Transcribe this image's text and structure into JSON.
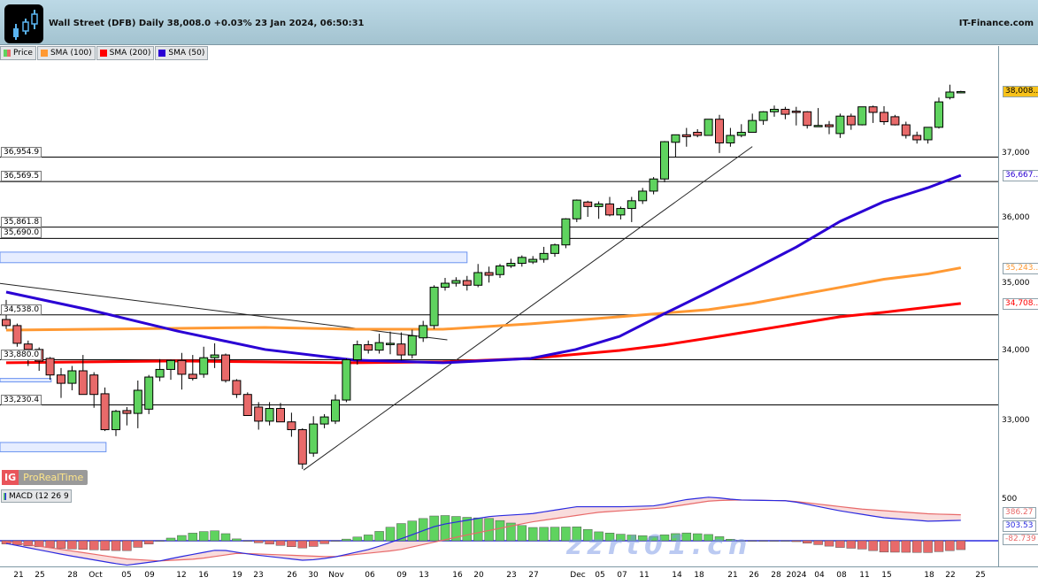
{
  "header": {
    "title": "Wall Street (DFB) Daily 38,008.0 +0.03% 23 Jan 2024, 06:50:31",
    "brand": "IT-Finance.com"
  },
  "legend": [
    {
      "label": "Price",
      "color": "#5fd35f"
    },
    {
      "label": "SMA (100)",
      "color": "#ff9933"
    },
    {
      "label": "SMA (200)",
      "color": "#ff0000"
    },
    {
      "label": "SMA (50)",
      "color": "#2a00d4"
    }
  ],
  "branding": {
    "ig": "IG",
    "name": "ProRealTime"
  },
  "watermark": "zzrt01.cn",
  "chart_data": [
    {
      "type": "candlestick",
      "title": "Wall Street (DFB) Daily",
      "y_scale": "log",
      "ylim": [
        32250,
        38600
      ],
      "y_ticks": [
        "38,000",
        "37,000",
        "36,000",
        "35,000",
        "34,000",
        "33,000"
      ],
      "y_tick_values": [
        38000,
        37000,
        36000,
        35000,
        34000,
        33000
      ],
      "up_color": "#5fd35f",
      "down_color": "#e86a6a",
      "x_tick_labels": [
        "21",
        "25",
        "28",
        "Oct",
        "05",
        "09",
        "12",
        "16",
        "19",
        "23",
        "26",
        "30",
        "Nov",
        "06",
        "09",
        "13",
        "16",
        "20",
        "23",
        "27",
        "Dec",
        "05",
        "07",
        "11",
        "14",
        "18",
        "21",
        "26",
        "28",
        "2024",
        "04",
        "08",
        "11",
        "15",
        "18",
        "22",
        "25"
      ],
      "ohlc": [
        [
          34470,
          34760,
          34330,
          34380
        ],
        [
          34380,
          34410,
          34070,
          34120
        ],
        [
          34110,
          34160,
          33790,
          34030
        ],
        [
          34030,
          34060,
          33720,
          33860
        ],
        [
          33900,
          33920,
          33590,
          33660
        ],
        [
          33660,
          33760,
          33330,
          33540
        ],
        [
          33540,
          33790,
          33440,
          33720
        ],
        [
          33720,
          33950,
          33380,
          33380
        ],
        [
          33660,
          33700,
          33190,
          33380
        ],
        [
          33390,
          33480,
          32860,
          32880
        ],
        [
          32880,
          33160,
          32790,
          33140
        ],
        [
          33150,
          33200,
          32940,
          33110
        ],
        [
          33110,
          33580,
          32900,
          33440
        ],
        [
          33170,
          33660,
          33100,
          33630
        ],
        [
          33630,
          33890,
          33570,
          33740
        ],
        [
          33740,
          33880,
          33590,
          33870
        ],
        [
          33870,
          33980,
          33450,
          33670
        ],
        [
          33670,
          33950,
          33580,
          33610
        ],
        [
          33670,
          34070,
          33620,
          33910
        ],
        [
          33910,
          34120,
          33760,
          33950
        ],
        [
          33950,
          33970,
          33550,
          33580
        ],
        [
          33580,
          33600,
          33330,
          33380
        ],
        [
          33380,
          33410,
          33080,
          33080
        ],
        [
          33200,
          33270,
          32880,
          33000
        ],
        [
          33000,
          33270,
          32940,
          33180
        ],
        [
          33180,
          33260,
          32990,
          32990
        ],
        [
          32990,
          33120,
          32780,
          32880
        ],
        [
          32880,
          32900,
          32330,
          32400
        ],
        [
          32550,
          33070,
          32500,
          32960
        ],
        [
          32960,
          33100,
          32900,
          33060
        ],
        [
          33000,
          33380,
          32960,
          33300
        ],
        [
          33300,
          33900,
          33270,
          33880
        ],
        [
          33880,
          34160,
          33810,
          34100
        ],
        [
          34100,
          34160,
          33970,
          34020
        ],
        [
          34020,
          34260,
          33970,
          34130
        ],
        [
          34120,
          34290,
          33960,
          34120
        ],
        [
          34110,
          34280,
          33870,
          33950
        ],
        [
          33950,
          34320,
          33900,
          34230
        ],
        [
          34200,
          34450,
          34140,
          34380
        ],
        [
          34380,
          34980,
          34330,
          34950
        ],
        [
          34950,
          35090,
          34900,
          35010
        ],
        [
          35010,
          35100,
          34960,
          35050
        ],
        [
          35050,
          35120,
          34900,
          34980
        ],
        [
          34980,
          35300,
          34950,
          35170
        ],
        [
          35170,
          35260,
          35020,
          35130
        ],
        [
          35140,
          35300,
          35090,
          35270
        ],
        [
          35270,
          35380,
          35240,
          35310
        ],
        [
          35310,
          35430,
          35260,
          35400
        ],
        [
          35330,
          35420,
          35300,
          35370
        ],
        [
          35370,
          35560,
          35320,
          35460
        ],
        [
          35460,
          35610,
          35410,
          35590
        ],
        [
          35590,
          36000,
          35540,
          35990
        ],
        [
          35990,
          36290,
          35940,
          36280
        ],
        [
          36250,
          36270,
          36020,
          36180
        ],
        [
          36180,
          36260,
          35990,
          36220
        ],
        [
          36220,
          36330,
          36030,
          36050
        ],
        [
          36050,
          36180,
          35980,
          36150
        ],
        [
          36150,
          36330,
          35940,
          36270
        ],
        [
          36270,
          36470,
          36220,
          36420
        ],
        [
          36420,
          36640,
          36370,
          36610
        ],
        [
          36610,
          37210,
          36560,
          37200
        ],
        [
          37190,
          37310,
          36960,
          37310
        ],
        [
          37310,
          37420,
          37120,
          37280
        ],
        [
          37350,
          37400,
          37270,
          37300
        ],
        [
          37300,
          37560,
          37300,
          37560
        ],
        [
          37560,
          37630,
          37020,
          37180
        ],
        [
          37180,
          37420,
          37120,
          37300
        ],
        [
          37300,
          37480,
          37270,
          37350
        ],
        [
          37350,
          37650,
          37350,
          37540
        ],
        [
          37540,
          37690,
          37470,
          37680
        ],
        [
          37680,
          37780,
          37600,
          37720
        ],
        [
          37720,
          37760,
          37560,
          37640
        ],
        [
          37690,
          37760,
          37460,
          37680
        ],
        [
          37680,
          37690,
          37410,
          37460
        ],
        [
          37460,
          37740,
          37440,
          37460
        ],
        [
          37470,
          37530,
          37320,
          37440
        ],
        [
          37330,
          37650,
          37260,
          37610
        ],
        [
          37610,
          37650,
          37390,
          37470
        ],
        [
          37470,
          37760,
          37460,
          37760
        ],
        [
          37760,
          37780,
          37500,
          37670
        ],
        [
          37670,
          37770,
          37470,
          37520
        ],
        [
          37600,
          37630,
          37460,
          37470
        ],
        [
          37470,
          37520,
          37250,
          37300
        ],
        [
          37300,
          37360,
          37170,
          37230
        ],
        [
          37230,
          37430,
          37170,
          37430
        ],
        [
          37430,
          37910,
          37410,
          37840
        ],
        [
          37910,
          38120,
          37880,
          38000
        ],
        [
          38000,
          38020,
          37980,
          38008
        ]
      ],
      "sma": [
        {
          "name": "SMA (50)",
          "color": "#2a00d4",
          "last_label": "36,667..",
          "points": [
            [
              0,
              34878
            ],
            [
              7.5,
              34616
            ],
            [
              15.6,
              34300
            ],
            [
              23.6,
              34029
            ],
            [
              31.7,
              33875
            ],
            [
              39.8,
              33836
            ],
            [
              47.8,
              33900
            ],
            [
              51.9,
              34029
            ],
            [
              55.9,
              34222
            ],
            [
              59.9,
              34550
            ],
            [
              64,
              34878
            ],
            [
              68,
              35211
            ],
            [
              72,
              35557
            ],
            [
              76,
              35951
            ],
            [
              80,
              36257
            ],
            [
              84,
              36473
            ],
            [
              87,
              36667
            ]
          ]
        },
        {
          "name": "SMA (100)",
          "color": "#ff9933",
          "last_label": "35,243..",
          "points": [
            [
              0,
              34313
            ],
            [
              15.6,
              34340
            ],
            [
              23.6,
              34353
            ],
            [
              31.7,
              34326
            ],
            [
              39.8,
              34326
            ],
            [
              47.8,
              34406
            ],
            [
              55.9,
              34511
            ],
            [
              59.9,
              34564
            ],
            [
              64,
              34616
            ],
            [
              68,
              34709
            ],
            [
              72,
              34829
            ],
            [
              76,
              34948
            ],
            [
              80,
              35070
            ],
            [
              84,
              35151
            ],
            [
              87,
              35243
            ]
          ]
        },
        {
          "name": "SMA (200)",
          "color": "#ff0000",
          "last_label": "34,708..",
          "points": [
            [
              0,
              33836
            ],
            [
              15.6,
              33862
            ],
            [
              23.6,
              33849
            ],
            [
              31.7,
              33836
            ],
            [
              39.8,
              33849
            ],
            [
              47.8,
              33900
            ],
            [
              55.9,
              34016
            ],
            [
              59.9,
              34094
            ],
            [
              64,
              34196
            ],
            [
              68,
              34300
            ],
            [
              72,
              34406
            ],
            [
              76,
              34511
            ],
            [
              80,
              34577
            ],
            [
              87,
              34708
            ]
          ]
        }
      ],
      "last_price_label": "38,008..",
      "levels": [
        {
          "value": 36954.9,
          "label": "36,954.9"
        },
        {
          "value": 36569.5,
          "label": "36,569.5"
        },
        {
          "value": 35861.8,
          "label": "35,861.8"
        },
        {
          "value": 35690.0,
          "label": "35,690.0"
        },
        {
          "value": 34538.0,
          "label": "34,538.0"
        },
        {
          "value": 33880.0,
          "label": "33,880.0"
        },
        {
          "value": 33230.4,
          "label": "33,230.4"
        }
      ],
      "zones": [
        {
          "from_bar": -1,
          "to_bar": 42,
          "low": 35320,
          "high": 35480
        },
        {
          "from_bar": -1,
          "to_bar": 9.1,
          "low": 32570,
          "high": 32700
        },
        {
          "from_bar": -1,
          "to_bar": 4.1,
          "low": 33560,
          "high": 33610
        }
      ],
      "trendlines": [
        {
          "from": [
            -0.6,
            35008
          ],
          "to": [
            40.2,
            34170
          ]
        },
        {
          "from": [
            27.1,
            32315
          ],
          "to": [
            68,
            37122
          ]
        }
      ]
    },
    {
      "type": "line",
      "title": "MACD (12 26 9",
      "y_ticks": [
        "500"
      ],
      "macd_color": "#2a2ae0",
      "signal_color": "#e86a6a",
      "macd_label": "303.53",
      "signal_label": "386.27",
      "histogram_label": "-82.739",
      "macd": [
        [
          0,
          -40
        ],
        [
          5.5,
          -215
        ],
        [
          10.9,
          -365
        ],
        [
          14,
          -300
        ],
        [
          15.8,
          -240
        ],
        [
          19.4,
          -130
        ],
        [
          22.4,
          -205
        ],
        [
          27.3,
          -295
        ],
        [
          29.7,
          -250
        ],
        [
          33.3,
          -120
        ],
        [
          35.7,
          13
        ],
        [
          39.4,
          233
        ],
        [
          44.2,
          365
        ],
        [
          47.8,
          400
        ],
        [
          52,
          506
        ],
        [
          56.3,
          506
        ],
        [
          59.3,
          520
        ],
        [
          61.7,
          607
        ],
        [
          64.2,
          651
        ],
        [
          66.6,
          607
        ],
        [
          71.4,
          594
        ],
        [
          75.7,
          453
        ],
        [
          79.9,
          343
        ],
        [
          84.1,
          290
        ],
        [
          87,
          303.53
        ]
      ],
      "signal": [
        [
          0,
          -10
        ],
        [
          5.5,
          -140
        ],
        [
          10.9,
          -270
        ],
        [
          14,
          -300
        ],
        [
          17.5,
          -270
        ],
        [
          21.1,
          -185
        ],
        [
          25.9,
          -215
        ],
        [
          29.7,
          -240
        ],
        [
          35.7,
          -140
        ],
        [
          41.8,
          80
        ],
        [
          47.8,
          277
        ],
        [
          53.9,
          422
        ],
        [
          59.9,
          488
        ],
        [
          64.2,
          594
        ],
        [
          66.6,
          607
        ],
        [
          71.4,
          594
        ],
        [
          78,
          470
        ],
        [
          84.1,
          400
        ],
        [
          87,
          386.27
        ]
      ]
    }
  ]
}
